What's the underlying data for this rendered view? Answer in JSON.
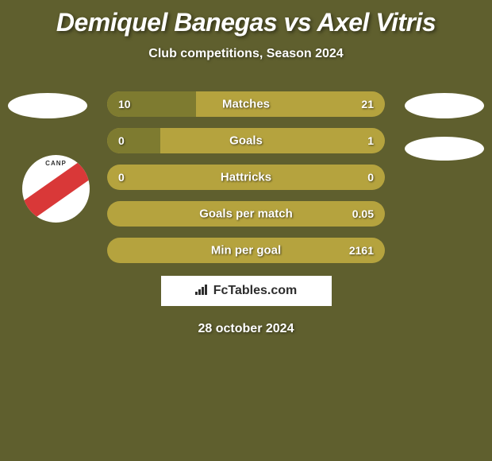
{
  "title": "Demiquel Banegas vs Axel Vitris",
  "subtitle": "Club competitions, Season 2024",
  "date": "28 october 2024",
  "footer_site": "FcTables.com",
  "colors": {
    "background": "#5f5f2e",
    "bar_background": "#b5a33e",
    "bar_fill": "#7e7b30",
    "text": "#ffffff",
    "footer_box_bg": "#ffffff",
    "footer_text": "#2d2d2d",
    "logo_stripe": "#d93838"
  },
  "typography": {
    "title_fontsize": 32,
    "subtitle_fontsize": 16,
    "bar_label_fontsize": 15,
    "bar_value_fontsize": 14,
    "date_fontsize": 16
  },
  "bars": [
    {
      "label": "Matches",
      "left_value": "10",
      "right_value": "21",
      "left_fill_pct": 32,
      "right_fill_pct": 0
    },
    {
      "label": "Goals",
      "left_value": "0",
      "right_value": "1",
      "left_fill_pct": 19,
      "right_fill_pct": 0
    },
    {
      "label": "Hattricks",
      "left_value": "0",
      "right_value": "0",
      "left_fill_pct": 0,
      "right_fill_pct": 0
    },
    {
      "label": "Goals per match",
      "left_value": "",
      "right_value": "0.05",
      "left_fill_pct": 0,
      "right_fill_pct": 0
    },
    {
      "label": "Min per goal",
      "left_value": "",
      "right_value": "2161",
      "left_fill_pct": 0,
      "right_fill_pct": 0
    }
  ],
  "logo_text": "CANP"
}
